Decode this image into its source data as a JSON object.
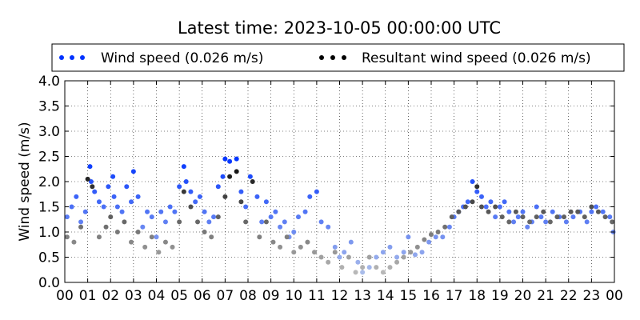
{
  "chart_data": {
    "type": "scatter",
    "title": "Latest time: 2023-10-05 00:00:00 UTC",
    "xlabel": "",
    "ylabel": "Wind speed (m/s)",
    "xlim": [
      0,
      24
    ],
    "ylim": [
      0,
      4.0
    ],
    "x_tick_labels": [
      "00",
      "01",
      "02",
      "03",
      "04",
      "05",
      "06",
      "07",
      "08",
      "09",
      "10",
      "11",
      "12",
      "13",
      "14",
      "15",
      "16",
      "17",
      "18",
      "19",
      "20",
      "21",
      "22",
      "23",
      "00"
    ],
    "y_tick_labels": [
      "0.0",
      "0.5",
      "1.0",
      "1.5",
      "2.0",
      "2.5",
      "3.0",
      "3.5",
      "4.0"
    ],
    "grid": true,
    "legend_position": "top",
    "legend": [
      {
        "label": "Wind speed (0.026 m/s)",
        "color": "#0033ff"
      },
      {
        "label": "Resultant wind speed (0.026 m/s)",
        "color": "#000000"
      }
    ],
    "x_unit": "hours (UTC)",
    "series": [
      {
        "name": "Wind speed (0.026 m/s)",
        "color_scale": "blue (high) to light blue/grey (low)",
        "x": [
          0.1,
          0.3,
          0.5,
          0.7,
          0.9,
          1.1,
          1.15,
          1.3,
          1.5,
          1.7,
          1.9,
          2.1,
          2.15,
          2.3,
          2.5,
          2.7,
          2.9,
          3.0,
          3.2,
          3.4,
          3.6,
          3.8,
          4.0,
          4.2,
          4.4,
          4.6,
          4.8,
          5.0,
          5.2,
          5.3,
          5.5,
          5.7,
          5.9,
          6.1,
          6.3,
          6.5,
          6.7,
          6.9,
          7.0,
          7.2,
          7.5,
          7.7,
          7.9,
          8.1,
          8.4,
          8.6,
          8.8,
          9.0,
          9.2,
          9.4,
          9.6,
          9.8,
          10.0,
          10.2,
          10.5,
          10.7,
          11.0,
          11.2,
          11.5,
          11.8,
          12.0,
          12.2,
          12.5,
          12.8,
          13.0,
          13.3,
          13.6,
          13.9,
          14.2,
          14.5,
          14.8,
          15.0,
          15.3,
          15.6,
          15.9,
          16.2,
          16.5,
          16.8,
          17.0,
          17.2,
          17.4,
          17.6,
          17.8,
          18.0,
          18.2,
          18.4,
          18.6,
          18.8,
          19.0,
          19.2,
          19.4,
          19.6,
          19.8,
          20.0,
          20.2,
          20.4,
          20.6,
          20.8,
          21.0,
          21.3,
          21.6,
          21.9,
          22.2,
          22.5,
          22.8,
          23.0,
          23.2,
          23.5,
          23.8,
          23.95
        ],
        "y": [
          1.3,
          1.5,
          1.7,
          1.2,
          1.4,
          2.3,
          2.0,
          1.8,
          1.6,
          1.5,
          1.9,
          2.1,
          1.7,
          1.5,
          1.4,
          1.9,
          1.6,
          2.2,
          1.7,
          1.1,
          1.4,
          1.3,
          0.9,
          1.4,
          1.2,
          1.5,
          1.4,
          1.9,
          2.3,
          2.0,
          1.8,
          1.6,
          1.7,
          1.4,
          1.2,
          1.3,
          1.9,
          2.1,
          2.45,
          2.4,
          2.45,
          1.8,
          1.5,
          2.1,
          1.7,
          1.2,
          1.6,
          1.3,
          1.4,
          1.1,
          1.2,
          0.9,
          1.0,
          1.3,
          1.4,
          1.7,
          1.8,
          1.2,
          1.1,
          0.7,
          0.5,
          0.6,
          0.8,
          0.4,
          0.2,
          0.3,
          0.5,
          0.6,
          0.7,
          0.5,
          0.6,
          0.9,
          0.55,
          0.6,
          0.8,
          0.9,
          0.9,
          1.1,
          1.3,
          1.4,
          1.5,
          1.6,
          2.0,
          1.8,
          1.7,
          1.5,
          1.6,
          1.3,
          1.5,
          1.6,
          1.4,
          1.2,
          1.3,
          1.4,
          1.1,
          1.2,
          1.5,
          1.3,
          1.2,
          1.4,
          1.3,
          1.2,
          1.3,
          1.4,
          1.2,
          1.4,
          1.5,
          1.4,
          1.3,
          1.0
        ]
      },
      {
        "name": "Resultant wind speed (0.026 m/s)",
        "color_scale": "black (high) to light grey (low)",
        "x": [
          0.1,
          0.4,
          0.7,
          1.0,
          1.2,
          1.5,
          1.8,
          2.0,
          2.3,
          2.6,
          2.9,
          3.2,
          3.5,
          3.8,
          4.1,
          4.4,
          4.7,
          5.0,
          5.2,
          5.5,
          5.8,
          6.1,
          6.4,
          6.7,
          7.0,
          7.2,
          7.5,
          7.7,
          7.9,
          8.2,
          8.5,
          8.8,
          9.1,
          9.4,
          9.7,
          10.0,
          10.3,
          10.6,
          10.9,
          11.2,
          11.5,
          11.8,
          12.1,
          12.4,
          12.7,
          13.0,
          13.3,
          13.6,
          13.9,
          14.2,
          14.5,
          14.8,
          15.1,
          15.4,
          15.7,
          16.0,
          16.3,
          16.6,
          16.9,
          17.2,
          17.5,
          17.8,
          18.0,
          18.2,
          18.5,
          18.8,
          19.1,
          19.4,
          19.7,
          20.0,
          20.3,
          20.6,
          20.9,
          21.2,
          21.5,
          21.8,
          22.1,
          22.4,
          22.7,
          23.0,
          23.3,
          23.6,
          23.9
        ],
        "y": [
          0.9,
          0.8,
          1.1,
          2.05,
          1.9,
          0.9,
          1.1,
          1.3,
          1.0,
          1.2,
          0.8,
          1.0,
          0.7,
          0.9,
          0.6,
          0.8,
          0.7,
          1.2,
          1.8,
          1.5,
          1.2,
          1.0,
          0.9,
          1.3,
          1.7,
          2.1,
          2.2,
          1.6,
          1.2,
          2.0,
          0.9,
          1.2,
          0.8,
          0.7,
          0.9,
          0.6,
          0.7,
          0.8,
          0.6,
          0.5,
          0.4,
          0.6,
          0.3,
          0.5,
          0.2,
          0.3,
          0.5,
          0.3,
          0.2,
          0.3,
          0.4,
          0.5,
          0.6,
          0.7,
          0.85,
          0.95,
          1.0,
          1.1,
          1.3,
          1.4,
          1.5,
          1.6,
          1.9,
          1.5,
          1.4,
          1.5,
          1.3,
          1.2,
          1.4,
          1.3,
          1.2,
          1.3,
          1.4,
          1.2,
          1.3,
          1.3,
          1.4,
          1.4,
          1.3,
          1.5,
          1.4,
          1.3,
          1.2
        ]
      }
    ]
  }
}
